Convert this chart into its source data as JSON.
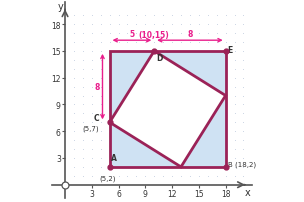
{
  "outer_square": [
    [
      5,
      2
    ],
    [
      18,
      2
    ],
    [
      18,
      15
    ],
    [
      5,
      15
    ]
  ],
  "tilted_square": [
    [
      5,
      7
    ],
    [
      10,
      15
    ],
    [
      18,
      10
    ],
    [
      13,
      2
    ]
  ],
  "outer_fill": "#cfe2f3",
  "tilted_fill": "#ffffff",
  "edge_color": "#9b2257",
  "arrow_color": "#e91e8c",
  "label_color": "#e91e8c",
  "point_color": "#9b2257",
  "text_color": "#333333",
  "bg_color": "#ffffff",
  "grid_dot_color": "#c5cfe0",
  "axis_color": "#555555",
  "points": {
    "A": [
      5,
      2
    ],
    "B": [
      18,
      2
    ],
    "C": [
      5,
      7
    ],
    "D": [
      10,
      15
    ],
    "E": [
      18,
      15
    ]
  },
  "xlim": [
    -1.5,
    21
  ],
  "ylim": [
    -1.5,
    20.5
  ],
  "xticks": [
    3,
    6,
    9,
    12,
    15,
    18
  ],
  "yticks": [
    3,
    6,
    9,
    12,
    15,
    18
  ]
}
